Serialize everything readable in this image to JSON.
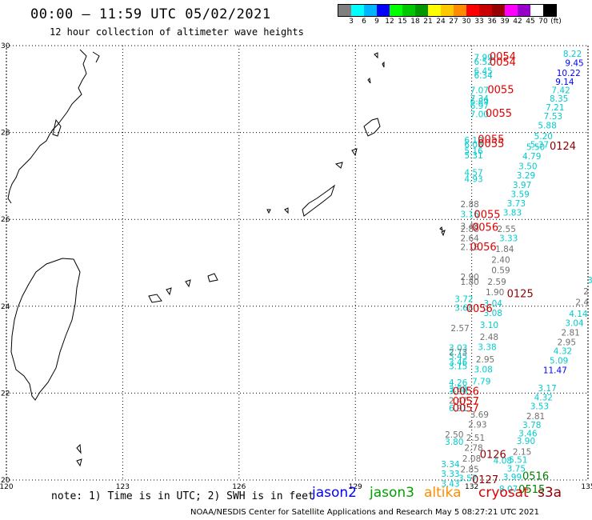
{
  "header": {
    "title": "00:00 – 11:59 UTC 05/02/2021",
    "subtitle": "12 hour collection of altimeter wave heights"
  },
  "color_scale": {
    "colors": [
      "#808080",
      "#00ffff",
      "#00b4ff",
      "#0000ff",
      "#00ff00",
      "#00c800",
      "#009600",
      "#ffff00",
      "#ffc800",
      "#ff8c00",
      "#ff0000",
      "#c80000",
      "#960000",
      "#ff00ff",
      "#9600c8",
      "#ffffff",
      "#000000"
    ],
    "labels": [
      "3",
      "6",
      "9",
      "12",
      "15",
      "18",
      "21",
      "24",
      "27",
      "30",
      "33",
      "36",
      "39",
      "42",
      "45",
      "70",
      "(ft)"
    ]
  },
  "axes": {
    "lon_labels": [
      {
        "value": 120,
        "text": "120"
      },
      {
        "value": 123,
        "text": "123"
      },
      {
        "value": 126,
        "text": "126"
      },
      {
        "value": 129,
        "text": "129"
      },
      {
        "value": 132,
        "text": "132"
      },
      {
        "value": 135,
        "text": "135"
      }
    ],
    "lat_labels": [
      {
        "value": 30,
        "text": "30"
      },
      {
        "value": 28,
        "text": "28"
      },
      {
        "value": 26,
        "text": "26"
      },
      {
        "value": 24,
        "text": "24"
      },
      {
        "value": 22,
        "text": "22"
      },
      {
        "value": 20,
        "text": "20"
      }
    ]
  },
  "observations": [
    {
      "lon": 132.3,
      "lat": 29.73,
      "text": "7.99",
      "color": "#00cccc"
    },
    {
      "lon": 132.3,
      "lat": 29.63,
      "text": "6.52",
      "color": "#00cccc"
    },
    {
      "lon": 132.3,
      "lat": 29.42,
      "text": "6.45",
      "color": "#00cccc"
    },
    {
      "lon": 132.3,
      "lat": 29.32,
      "text": "6.34",
      "color": "#00cccc"
    },
    {
      "lon": 132.2,
      "lat": 28.98,
      "text": "7.07",
      "color": "#00cccc"
    },
    {
      "lon": 132.2,
      "lat": 28.78,
      "text": "7.34",
      "color": "#00cccc"
    },
    {
      "lon": 132.2,
      "lat": 28.72,
      "text": "6.89",
      "color": "#00cccc"
    },
    {
      "lon": 132.2,
      "lat": 28.62,
      "text": "6.97",
      "color": "#00cccc"
    },
    {
      "lon": 132.2,
      "lat": 28.43,
      "text": "7.00",
      "color": "#00cccc"
    },
    {
      "lon": 134.6,
      "lat": 29.82,
      "text": "8.22",
      "color": "#00cccc"
    },
    {
      "lon": 134.65,
      "lat": 29.6,
      "text": "9.45",
      "color": "#0000ff"
    },
    {
      "lon": 134.5,
      "lat": 29.37,
      "text": "10.22",
      "color": "#0000ff"
    },
    {
      "lon": 134.4,
      "lat": 29.17,
      "text": "9.14",
      "color": "#0000ff"
    },
    {
      "lon": 134.3,
      "lat": 28.98,
      "text": "7.42",
      "color": "#00cccc"
    },
    {
      "lon": 134.25,
      "lat": 28.78,
      "text": "8.35",
      "color": "#00cccc"
    },
    {
      "lon": 134.15,
      "lat": 28.58,
      "text": "7.21",
      "color": "#00cccc"
    },
    {
      "lon": 134.1,
      "lat": 28.38,
      "text": "7.53",
      "color": "#00cccc"
    },
    {
      "lon": 133.95,
      "lat": 28.17,
      "text": "5.88",
      "color": "#00cccc"
    },
    {
      "lon": 133.85,
      "lat": 27.92,
      "text": "5.20",
      "color": "#00cccc"
    },
    {
      "lon": 133.75,
      "lat": 27.73,
      "text": "5.37",
      "color": "#00cccc"
    },
    {
      "lon": 133.65,
      "lat": 27.67,
      "text": "5.50",
      "color": "#00cccc"
    },
    {
      "lon": 133.55,
      "lat": 27.46,
      "text": "4.79",
      "color": "#00cccc"
    },
    {
      "lon": 133.45,
      "lat": 27.23,
      "text": "3.50",
      "color": "#00cccc"
    },
    {
      "lon": 133.4,
      "lat": 27.02,
      "text": "3.29",
      "color": "#00cccc"
    },
    {
      "lon": 133.3,
      "lat": 26.8,
      "text": "3.97",
      "color": "#00cccc"
    },
    {
      "lon": 133.25,
      "lat": 26.58,
      "text": "3.59",
      "color": "#00cccc"
    },
    {
      "lon": 133.15,
      "lat": 26.37,
      "text": "3.73",
      "color": "#00cccc"
    },
    {
      "lon": 133.05,
      "lat": 26.16,
      "text": "3.83",
      "color": "#00cccc"
    },
    {
      "lon": 132.05,
      "lat": 27.83,
      "text": "6.18",
      "color": "#00cccc"
    },
    {
      "lon": 132.05,
      "lat": 27.73,
      "text": "6.08",
      "color": "#00cccc"
    },
    {
      "lon": 132.05,
      "lat": 27.58,
      "text": "5.16",
      "color": "#00cccc"
    },
    {
      "lon": 132.05,
      "lat": 27.48,
      "text": "5.31",
      "color": "#00cccc"
    },
    {
      "lon": 132.05,
      "lat": 27.08,
      "text": "4.57",
      "color": "#00cccc"
    },
    {
      "lon": 132.05,
      "lat": 26.93,
      "text": "4.93",
      "color": "#00cccc"
    },
    {
      "lon": 131.95,
      "lat": 26.35,
      "text": "2.88",
      "color": "#707070"
    },
    {
      "lon": 131.95,
      "lat": 26.12,
      "text": "3.16",
      "color": "#00cccc"
    },
    {
      "lon": 131.95,
      "lat": 25.85,
      "text": "3.48",
      "color": "#707070"
    },
    {
      "lon": 131.95,
      "lat": 25.78,
      "text": "2.88",
      "color": "#707070"
    },
    {
      "lon": 131.95,
      "lat": 25.57,
      "text": "2.64",
      "color": "#707070"
    },
    {
      "lon": 131.95,
      "lat": 25.37,
      "text": "2.18",
      "color": "#707070"
    },
    {
      "lon": 132.9,
      "lat": 25.78,
      "text": "2.55",
      "color": "#707070"
    },
    {
      "lon": 132.95,
      "lat": 25.57,
      "text": "3.33",
      "color": "#00cccc"
    },
    {
      "lon": 132.85,
      "lat": 25.32,
      "text": "1.84",
      "color": "#707070"
    },
    {
      "lon": 132.75,
      "lat": 25.07,
      "text": "2.40",
      "color": "#707070"
    },
    {
      "lon": 132.75,
      "lat": 24.83,
      "text": "0.59",
      "color": "#707070"
    },
    {
      "lon": 132.65,
      "lat": 24.57,
      "text": "2.59",
      "color": "#707070"
    },
    {
      "lon": 132.6,
      "lat": 24.33,
      "text": "1.90",
      "color": "#707070"
    },
    {
      "lon": 132.55,
      "lat": 24.07,
      "text": "3.04",
      "color": "#00cccc"
    },
    {
      "lon": 132.55,
      "lat": 23.85,
      "text": "3.08",
      "color": "#00cccc"
    },
    {
      "lon": 132.45,
      "lat": 23.57,
      "text": "3.10",
      "color": "#00cccc"
    },
    {
      "lon": 132.45,
      "lat": 23.3,
      "text": "2.48",
      "color": "#707070"
    },
    {
      "lon": 132.4,
      "lat": 23.07,
      "text": "3.38",
      "color": "#00cccc"
    },
    {
      "lon": 132.35,
      "lat": 22.78,
      "text": "2.95",
      "color": "#707070"
    },
    {
      "lon": 132.3,
      "lat": 22.55,
      "text": "3.08",
      "color": "#00cccc"
    },
    {
      "lon": 132.25,
      "lat": 22.27,
      "text": "7.79",
      "color": "#00cccc"
    },
    {
      "lon": 131.95,
      "lat": 24.68,
      "text": "2.90",
      "color": "#707070"
    },
    {
      "lon": 131.95,
      "lat": 24.57,
      "text": "1.80",
      "color": "#707070"
    },
    {
      "lon": 131.8,
      "lat": 24.17,
      "text": "3.72",
      "color": "#00cccc"
    },
    {
      "lon": 131.8,
      "lat": 23.97,
      "text": "3.68",
      "color": "#00cccc"
    },
    {
      "lon": 131.7,
      "lat": 23.5,
      "text": "2.57",
      "color": "#707070"
    },
    {
      "lon": 131.65,
      "lat": 23.05,
      "text": "3.03",
      "color": "#00cccc"
    },
    {
      "lon": 131.65,
      "lat": 22.95,
      "text": "2.73",
      "color": "#707070"
    },
    {
      "lon": 131.65,
      "lat": 22.85,
      "text": "3.45",
      "color": "#00cccc"
    },
    {
      "lon": 131.65,
      "lat": 22.72,
      "text": "3.46",
      "color": "#00cccc"
    },
    {
      "lon": 131.65,
      "lat": 22.62,
      "text": "3.15",
      "color": "#00cccc"
    },
    {
      "lon": 131.65,
      "lat": 22.25,
      "text": "4.26",
      "color": "#00cccc"
    },
    {
      "lon": 131.65,
      "lat": 22.1,
      "text": "3.99",
      "color": "#00cccc"
    },
    {
      "lon": 131.65,
      "lat": 22.05,
      "text": "3.96",
      "color": "#00cccc"
    },
    {
      "lon": 131.65,
      "lat": 21.83,
      "text": "2.47",
      "color": "#707070"
    },
    {
      "lon": 131.65,
      "lat": 21.66,
      "text": "6.91",
      "color": "#00cccc"
    },
    {
      "lon": 132.2,
      "lat": 21.51,
      "text": "3.69",
      "color": "#707070"
    },
    {
      "lon": 132.15,
      "lat": 21.28,
      "text": "2.93",
      "color": "#707070"
    },
    {
      "lon": 132.1,
      "lat": 20.98,
      "text": "2.51",
      "color": "#707070"
    },
    {
      "lon": 132.05,
      "lat": 20.75,
      "text": "2.78",
      "color": "#707070"
    },
    {
      "lon": 132.0,
      "lat": 20.5,
      "text": "2.08",
      "color": "#707070"
    },
    {
      "lon": 131.95,
      "lat": 20.25,
      "text": "2.85",
      "color": "#707070"
    },
    {
      "lon": 131.9,
      "lat": 20.05,
      "text": "3.57",
      "color": "#00cccc"
    },
    {
      "lon": 131.55,
      "lat": 21.05,
      "text": "2.50",
      "color": "#707070"
    },
    {
      "lon": 131.55,
      "lat": 20.88,
      "text": "3.80",
      "color": "#00cccc"
    },
    {
      "lon": 131.45,
      "lat": 20.37,
      "text": "3.34",
      "color": "#00cccc"
    },
    {
      "lon": 131.45,
      "lat": 20.15,
      "text": "3.33",
      "color": "#00cccc"
    },
    {
      "lon": 131.45,
      "lat": 19.92,
      "text": "3.43",
      "color": "#00cccc"
    },
    {
      "lon": 135.05,
      "lat": 24.6,
      "text": "3",
      "color": "#00cccc"
    },
    {
      "lon": 134.95,
      "lat": 24.35,
      "text": "2",
      "color": "#707070"
    },
    {
      "lon": 134.85,
      "lat": 24.1,
      "text": "2.4",
      "color": "#707070"
    },
    {
      "lon": 134.75,
      "lat": 23.83,
      "text": "4.14",
      "color": "#00cccc"
    },
    {
      "lon": 134.65,
      "lat": 23.62,
      "text": "3.04",
      "color": "#00cccc"
    },
    {
      "lon": 134.55,
      "lat": 23.4,
      "text": "2.81",
      "color": "#707070"
    },
    {
      "lon": 134.45,
      "lat": 23.18,
      "text": "2.95",
      "color": "#707070"
    },
    {
      "lon": 134.35,
      "lat": 22.97,
      "text": "4.32",
      "color": "#00cccc"
    },
    {
      "lon": 134.25,
      "lat": 22.75,
      "text": "5.09",
      "color": "#00cccc"
    },
    {
      "lon": 134.15,
      "lat": 22.53,
      "text": "11.47",
      "color": "#0000ff"
    },
    {
      "lon": 133.95,
      "lat": 22.12,
      "text": "3.17",
      "color": "#00cccc"
    },
    {
      "lon": 133.85,
      "lat": 21.91,
      "text": "4.32",
      "color": "#00cccc"
    },
    {
      "lon": 133.75,
      "lat": 21.7,
      "text": "3.53",
      "color": "#00cccc"
    },
    {
      "lon": 133.65,
      "lat": 21.47,
      "text": "2.81",
      "color": "#707070"
    },
    {
      "lon": 133.55,
      "lat": 21.27,
      "text": "3.78",
      "color": "#00cccc"
    },
    {
      "lon": 133.45,
      "lat": 21.08,
      "text": "3.46",
      "color": "#00cccc"
    },
    {
      "lon": 133.4,
      "lat": 20.9,
      "text": "3.90",
      "color": "#00cccc"
    },
    {
      "lon": 133.3,
      "lat": 20.65,
      "text": "2.15",
      "color": "#707070"
    },
    {
      "lon": 133.2,
      "lat": 20.47,
      "text": "5.51",
      "color": "#00cccc"
    },
    {
      "lon": 133.15,
      "lat": 20.27,
      "text": "3.75",
      "color": "#00cccc"
    },
    {
      "lon": 133.05,
      "lat": 20.07,
      "text": "3.99",
      "color": "#00cccc"
    },
    {
      "lon": 132.95,
      "lat": 19.8,
      "text": "8.07",
      "color": "#00cccc"
    },
    {
      "lon": 132.8,
      "lat": 20.45,
      "text": "4.08",
      "color": "#00cccc"
    }
  ],
  "time_labels": [
    {
      "lon": 132.8,
      "lat": 29.76,
      "text": "0054",
      "color": "#e00000"
    },
    {
      "lon": 132.8,
      "lat": 29.63,
      "text": "0054",
      "color": "#e00000"
    },
    {
      "lon": 132.75,
      "lat": 29.0,
      "text": "0055",
      "color": "#e00000"
    },
    {
      "lon": 132.7,
      "lat": 28.45,
      "text": "0055",
      "color": "#e00000"
    },
    {
      "lon": 132.5,
      "lat": 27.85,
      "text": "0055",
      "color": "#e00000"
    },
    {
      "lon": 132.5,
      "lat": 27.75,
      "text": "0055",
      "color": "#e00000"
    },
    {
      "lon": 134.35,
      "lat": 27.7,
      "text": "0124",
      "color": "#900000"
    },
    {
      "lon": 132.4,
      "lat": 26.12,
      "text": "0055",
      "color": "#e00000"
    },
    {
      "lon": 132.35,
      "lat": 25.83,
      "text": "0056",
      "color": "#e00000"
    },
    {
      "lon": 132.3,
      "lat": 25.38,
      "text": "0056",
      "color": "#e00000"
    },
    {
      "lon": 133.25,
      "lat": 24.3,
      "text": "0125",
      "color": "#900000"
    },
    {
      "lon": 132.2,
      "lat": 23.96,
      "text": "0056",
      "color": "#e00000"
    },
    {
      "lon": 131.85,
      "lat": 22.05,
      "text": "0056",
      "color": "#e00000"
    },
    {
      "lon": 131.85,
      "lat": 21.82,
      "text": "0057",
      "color": "#e00000"
    },
    {
      "lon": 131.85,
      "lat": 21.67,
      "text": "0057",
      "color": "#e00000"
    },
    {
      "lon": 132.55,
      "lat": 20.6,
      "text": "0126",
      "color": "#900000"
    },
    {
      "lon": 132.35,
      "lat": 20.02,
      "text": "0127",
      "color": "#900000"
    },
    {
      "lon": 133.65,
      "lat": 20.1,
      "text": "0516",
      "color": "#008000"
    },
    {
      "lon": 133.55,
      "lat": 19.8,
      "text": "0515",
      "color": "#008000"
    }
  ],
  "footer": {
    "note": "note: 1) Time is in UTC; 2) SWH is in feet",
    "satellites": [
      {
        "name": "jason2",
        "color": "#0000ff"
      },
      {
        "name": "jason3",
        "color": "#00a000"
      },
      {
        "name": "altika",
        "color": "#ff8c00"
      },
      {
        "name": "cryosat",
        "color": "#e00000"
      },
      {
        "name": "s3a",
        "color": "#900000"
      }
    ],
    "credit": "NOAA/NESDIS Center for Satellite Applications and Research    May  5 08:27:21 UTC 2021"
  }
}
